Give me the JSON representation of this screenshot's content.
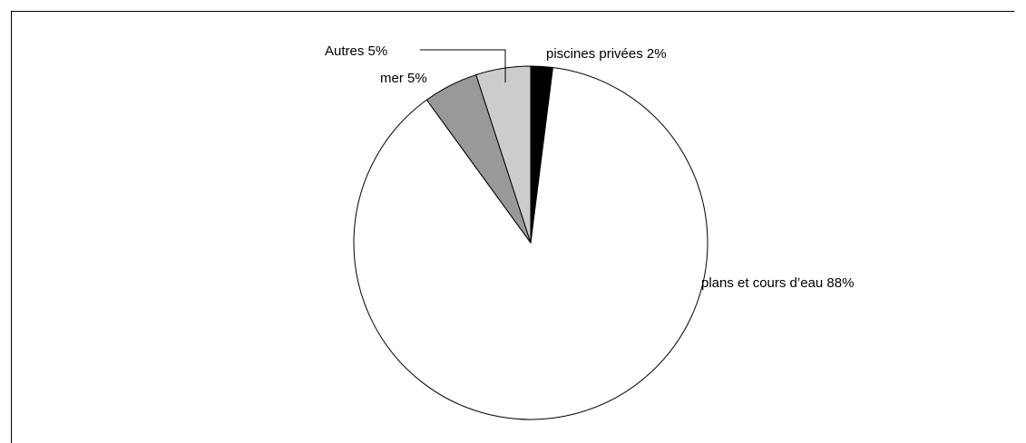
{
  "chart_data": {
    "type": "pie",
    "title": "",
    "start": "12 o'clock",
    "direction": "clockwise",
    "slices": [
      {
        "label": "piscines privées",
        "value": 2,
        "display": "piscines privées 2%",
        "color": "#000000"
      },
      {
        "label": "plans et cours d’eau",
        "value": 88,
        "display": "plans et cours d’eau 88%",
        "color": "#ffffff"
      },
      {
        "label": "mer",
        "value": 5,
        "display": "mer 5%",
        "color": "#999999"
      },
      {
        "label": "Autres",
        "value": 5,
        "display": "Autres 5%",
        "color": "#cccccc"
      }
    ],
    "slice_border_color": "#000000",
    "frame_color": "#000000"
  }
}
